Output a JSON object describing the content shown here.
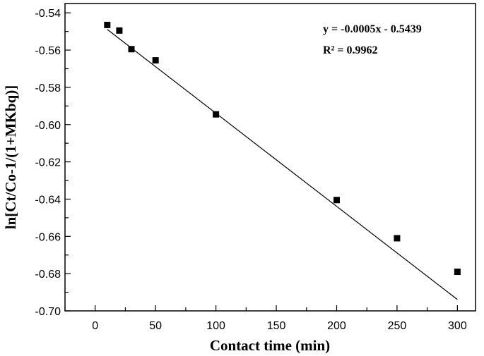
{
  "chart_data": {
    "type": "scatter",
    "xlabel": "Contact time (min)",
    "ylabel": "ln[Ct/Co-1/(1+MKbq)]",
    "xlim": [
      -25,
      315
    ],
    "ylim": [
      -0.7,
      -0.535
    ],
    "x_ticks": [
      0,
      50,
      100,
      150,
      200,
      250,
      300
    ],
    "y_ticks": [
      -0.7,
      -0.68,
      -0.66,
      -0.64,
      -0.62,
      -0.6,
      -0.58,
      -0.56,
      -0.54
    ],
    "x_tick_labels": [
      "0",
      "50",
      "100",
      "150",
      "200",
      "250",
      "300"
    ],
    "y_tick_labels": [
      "-0.70",
      "-0.68",
      "-0.66",
      "-0.64",
      "-0.62",
      "-0.60",
      "-0.58",
      "-0.56",
      "-0.54"
    ],
    "series": [
      {
        "marker": "square",
        "color": "#000000",
        "x": [
          10,
          20,
          30,
          50,
          100,
          200,
          250,
          300
        ],
        "y": [
          -0.5465,
          -0.5495,
          -0.5595,
          -0.5655,
          -0.5945,
          -0.6405,
          -0.661,
          -0.679
        ]
      }
    ],
    "fit_line": {
      "slope": -0.0005,
      "intercept": -0.5439,
      "x_range": [
        10,
        300
      ]
    },
    "annotations": [
      "y = -0.0005x - 0.5439",
      "R² = 0.9962"
    ],
    "grid": false,
    "legend": "none"
  }
}
